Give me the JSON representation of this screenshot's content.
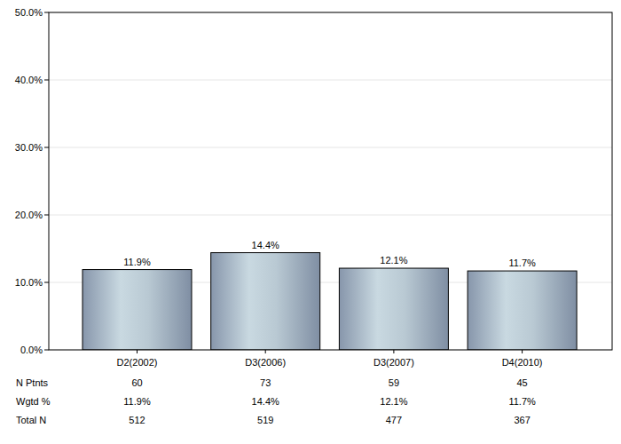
{
  "chart_data": {
    "type": "bar",
    "categories": [
      "D2(2002)",
      "D3(2006)",
      "D3(2007)",
      "D4(2010)"
    ],
    "values": [
      11.9,
      14.4,
      12.1,
      11.7
    ],
    "value_labels": [
      "11.9%",
      "14.4%",
      "12.1%",
      "11.7%"
    ],
    "data_labels": true,
    "ylim": [
      0,
      50
    ],
    "yticks": [
      {
        "value": 0,
        "label": "0.0%"
      },
      {
        "value": 10,
        "label": "10.0%"
      },
      {
        "value": 20,
        "label": "20.0%"
      },
      {
        "value": 30,
        "label": "30.0%"
      },
      {
        "value": 40,
        "label": "40.0%"
      },
      {
        "value": 50,
        "label": "50.0%"
      }
    ],
    "grid": true
  },
  "table": {
    "rows": [
      {
        "label": "N Ptnts",
        "values": [
          60,
          73,
          59,
          45
        ]
      },
      {
        "label": "Wgtd %",
        "values": [
          "11.9%",
          "14.4%",
          "12.1%",
          "11.7%"
        ]
      },
      {
        "label": "Total N",
        "values": [
          512,
          519,
          477,
          367
        ]
      }
    ]
  }
}
